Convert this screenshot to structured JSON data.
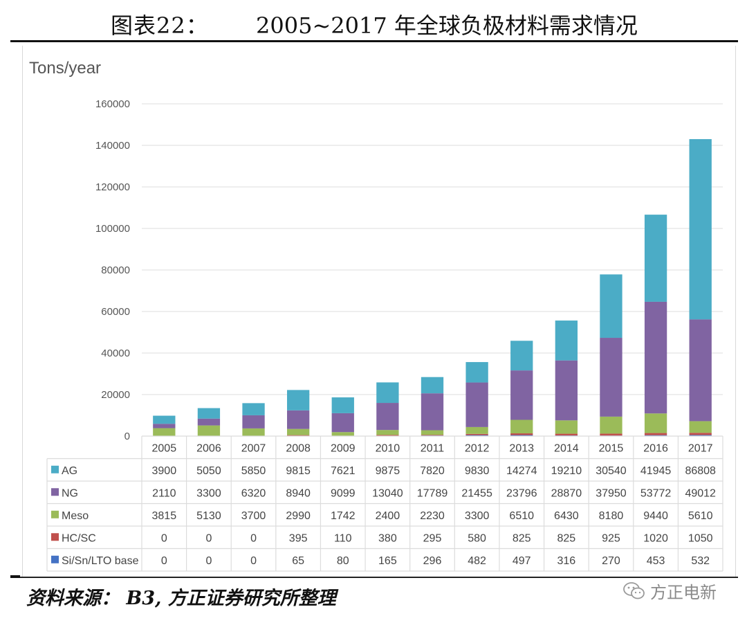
{
  "header": {
    "figure_label": "图表22：",
    "figure_title": "2005~2017 年全球负极材料需求情况"
  },
  "footer": {
    "source": "资料来源： B3, 方正证券研究所整理",
    "watermark": "方正电新",
    "watermark_icon": "wechat-icon"
  },
  "chart_data": {
    "type": "bar",
    "stacked": true,
    "title": "2005~2017 年全球负极材料需求情况",
    "xlabel": "",
    "ylabel": "Tons/year",
    "ylim": [
      0,
      160000
    ],
    "yticks": [
      0,
      20000,
      40000,
      60000,
      80000,
      100000,
      120000,
      140000,
      160000
    ],
    "grid": true,
    "legend": "data-table-below",
    "categories": [
      "2005",
      "2006",
      "2007",
      "2008",
      "2009",
      "2010",
      "2011",
      "2012",
      "2013",
      "2014",
      "2015",
      "2016",
      "2017"
    ],
    "series": [
      {
        "name": "Si/Sn/LTO base",
        "color": "#4472c4",
        "values": [
          0,
          0,
          0,
          65,
          80,
          165,
          296,
          482,
          497,
          316,
          270,
          453,
          532
        ]
      },
      {
        "name": "HC/SC",
        "color": "#c0504d",
        "values": [
          0,
          0,
          0,
          395,
          110,
          380,
          295,
          580,
          825,
          825,
          925,
          1020,
          1050
        ]
      },
      {
        "name": "Meso",
        "color": "#9bbb59",
        "values": [
          3815,
          5130,
          3700,
          2990,
          1742,
          2400,
          2230,
          3300,
          6510,
          6430,
          8180,
          9440,
          5610
        ]
      },
      {
        "name": "NG",
        "color": "#8064a2",
        "values": [
          2110,
          3300,
          6320,
          8940,
          9099,
          13040,
          17789,
          21455,
          23796,
          28870,
          37950,
          53772,
          49012
        ]
      },
      {
        "name": "AG",
        "color": "#4bacc6",
        "values": [
          3900,
          5050,
          5850,
          9815,
          7621,
          9875,
          7820,
          9830,
          14274,
          19210,
          30540,
          41945,
          86808
        ]
      }
    ],
    "table_row_order": [
      "AG",
      "NG",
      "Meso",
      "HC/SC",
      "Si/Sn/LTO base"
    ]
  }
}
